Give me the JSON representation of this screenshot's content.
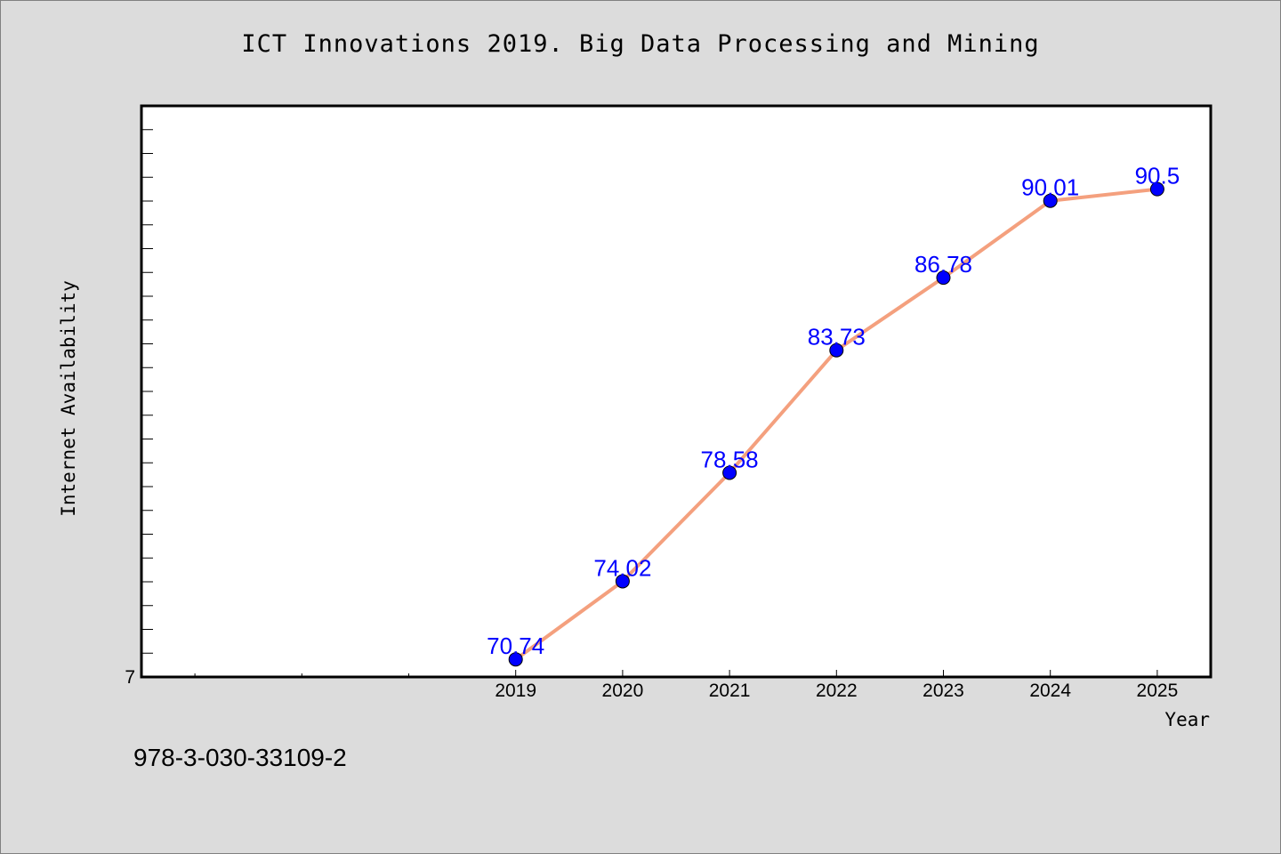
{
  "footer": {
    "code": "978-3-030-33109-2"
  },
  "chart_data": {
    "type": "line",
    "title": "ICT Innovations 2019. Big Data Processing and Mining",
    "xlabel": "Year",
    "ylabel": "Internet Availability",
    "categories": [
      "2019",
      "2020",
      "2021",
      "2022",
      "2023",
      "2024",
      "2025"
    ],
    "series": [
      {
        "values": [
          70.74,
          74.02,
          78.58,
          83.73,
          86.78,
          90.01,
          90.5
        ]
      }
    ],
    "data_labels": [
      "70.74",
      "74.02",
      "78.58",
      "83.73",
      "86.78",
      "90.01",
      "90.5"
    ],
    "y_tick_labels": [
      "7"
    ],
    "ylim": [
      70,
      94
    ],
    "grid": false,
    "colors": {
      "line": "#f4a07e",
      "marker": "#0000ff",
      "label": "#0000ff",
      "background": "#dcdcdc",
      "plot": "#ffffff"
    }
  }
}
